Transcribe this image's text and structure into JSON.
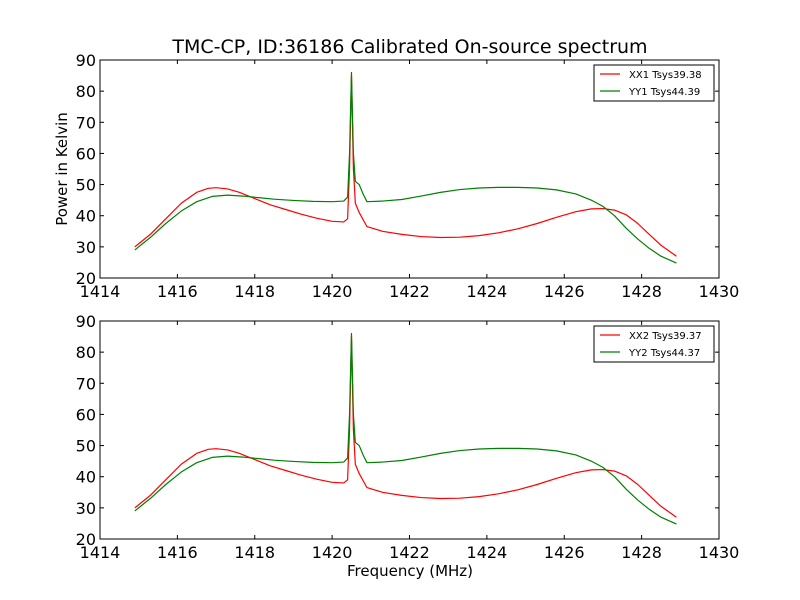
{
  "chart_data": [
    {
      "type": "line",
      "title": "TMC-CP, ID:36186 Calibrated On-source spectrum",
      "xlabel": "",
      "ylabel": "Power in Kelvin",
      "xlim": [
        1414,
        1430
      ],
      "ylim": [
        20,
        90
      ],
      "xticks": [
        "1414",
        "1416",
        "1418",
        "1420",
        "1422",
        "1424",
        "1426",
        "1428",
        "1430"
      ],
      "yticks": [
        "20",
        "30",
        "40",
        "50",
        "60",
        "70",
        "80",
        "90"
      ],
      "grid": false,
      "legend_position": "top-right",
      "series": [
        {
          "name": "XX1 Tsys39.38",
          "color": "#ff0000",
          "x": [
            1414.9,
            1415.3,
            1415.7,
            1416.1,
            1416.5,
            1416.8,
            1417.0,
            1417.3,
            1417.6,
            1418.0,
            1418.4,
            1418.8,
            1419.2,
            1419.6,
            1420.0,
            1420.3,
            1420.4,
            1420.45,
            1420.5,
            1420.55,
            1420.6,
            1420.7,
            1420.9,
            1421.3,
            1421.8,
            1422.3,
            1422.8,
            1423.3,
            1423.8,
            1424.3,
            1424.8,
            1425.3,
            1425.8,
            1426.3,
            1426.7,
            1427.0,
            1427.3,
            1427.6,
            1427.9,
            1428.2,
            1428.5,
            1428.9
          ],
          "y": [
            30,
            34,
            39,
            44,
            47.5,
            48.8,
            49,
            48.6,
            47.5,
            45.5,
            43.5,
            42,
            40.5,
            39.2,
            38.2,
            38,
            39,
            55,
            85,
            55,
            44,
            41,
            36.5,
            35,
            34,
            33.3,
            33,
            33.1,
            33.6,
            34.5,
            35.8,
            37.5,
            39.5,
            41.3,
            42.2,
            42.3,
            41.8,
            40.3,
            37.5,
            34,
            30.5,
            27
          ]
        },
        {
          "name": "YY1 Tsys44.39",
          "color": "#008000",
          "x": [
            1414.9,
            1415.3,
            1415.7,
            1416.1,
            1416.5,
            1416.9,
            1417.3,
            1417.7,
            1418.1,
            1418.5,
            1419.0,
            1419.5,
            1420.0,
            1420.3,
            1420.4,
            1420.45,
            1420.5,
            1420.55,
            1420.6,
            1420.7,
            1420.8,
            1420.9,
            1421.3,
            1421.8,
            1422.3,
            1422.8,
            1423.3,
            1423.8,
            1424.3,
            1424.8,
            1425.3,
            1425.8,
            1426.3,
            1426.7,
            1427.0,
            1427.3,
            1427.6,
            1427.9,
            1428.2,
            1428.5,
            1428.9
          ],
          "y": [
            29,
            33,
            37.5,
            41.5,
            44.5,
            46.2,
            46.6,
            46.3,
            45.8,
            45.3,
            44.9,
            44.6,
            44.5,
            44.7,
            46,
            60,
            86,
            60,
            51,
            50,
            47,
            44.5,
            44.7,
            45.2,
            46.3,
            47.5,
            48.4,
            48.9,
            49.1,
            49.1,
            48.9,
            48.3,
            47,
            45,
            43,
            40,
            36,
            32.5,
            29.5,
            27,
            24.8
          ]
        }
      ]
    },
    {
      "type": "line",
      "title": "",
      "xlabel": "Frequency (MHz)",
      "ylabel": "",
      "xlim": [
        1414,
        1430
      ],
      "ylim": [
        20,
        90
      ],
      "xticks": [
        "1414",
        "1416",
        "1418",
        "1420",
        "1422",
        "1424",
        "1426",
        "1428",
        "1430"
      ],
      "yticks": [
        "20",
        "30",
        "40",
        "50",
        "60",
        "70",
        "80",
        "90"
      ],
      "grid": false,
      "legend_position": "top-right",
      "series": [
        {
          "name": "XX2 Tsys39.37",
          "color": "#ff0000",
          "x": [
            1414.9,
            1415.3,
            1415.7,
            1416.1,
            1416.5,
            1416.8,
            1417.0,
            1417.3,
            1417.6,
            1418.0,
            1418.4,
            1418.8,
            1419.2,
            1419.6,
            1420.0,
            1420.3,
            1420.4,
            1420.45,
            1420.5,
            1420.55,
            1420.6,
            1420.7,
            1420.9,
            1421.3,
            1421.8,
            1422.3,
            1422.8,
            1423.3,
            1423.8,
            1424.3,
            1424.8,
            1425.3,
            1425.8,
            1426.3,
            1426.7,
            1427.0,
            1427.3,
            1427.6,
            1427.9,
            1428.2,
            1428.5,
            1428.9
          ],
          "y": [
            30,
            34,
            39,
            44,
            47.5,
            48.8,
            49,
            48.6,
            47.5,
            45.5,
            43.5,
            42,
            40.5,
            39.2,
            38.2,
            38,
            39,
            55,
            85,
            55,
            44,
            41,
            36.5,
            35,
            34,
            33.3,
            33,
            33.1,
            33.6,
            34.5,
            35.8,
            37.5,
            39.5,
            41.3,
            42.2,
            42.3,
            41.8,
            40.3,
            37.5,
            34,
            30.5,
            27
          ]
        },
        {
          "name": "YY2 Tsys44.37",
          "color": "#008000",
          "x": [
            1414.9,
            1415.3,
            1415.7,
            1416.1,
            1416.5,
            1416.9,
            1417.3,
            1417.7,
            1418.1,
            1418.5,
            1419.0,
            1419.5,
            1420.0,
            1420.3,
            1420.4,
            1420.45,
            1420.5,
            1420.55,
            1420.6,
            1420.7,
            1420.8,
            1420.9,
            1421.3,
            1421.8,
            1422.3,
            1422.8,
            1423.3,
            1423.8,
            1424.3,
            1424.8,
            1425.3,
            1425.8,
            1426.3,
            1426.7,
            1427.0,
            1427.3,
            1427.6,
            1427.9,
            1428.2,
            1428.5,
            1428.9
          ],
          "y": [
            29,
            33,
            37.5,
            41.5,
            44.5,
            46.2,
            46.6,
            46.3,
            45.8,
            45.3,
            44.9,
            44.6,
            44.5,
            44.7,
            46,
            60,
            86,
            60,
            51,
            50,
            47,
            44.5,
            44.7,
            45.2,
            46.3,
            47.5,
            48.4,
            48.9,
            49.1,
            49.1,
            48.9,
            48.3,
            47,
            45,
            43,
            40,
            36,
            32.5,
            29.5,
            27,
            24.8
          ]
        }
      ]
    }
  ]
}
